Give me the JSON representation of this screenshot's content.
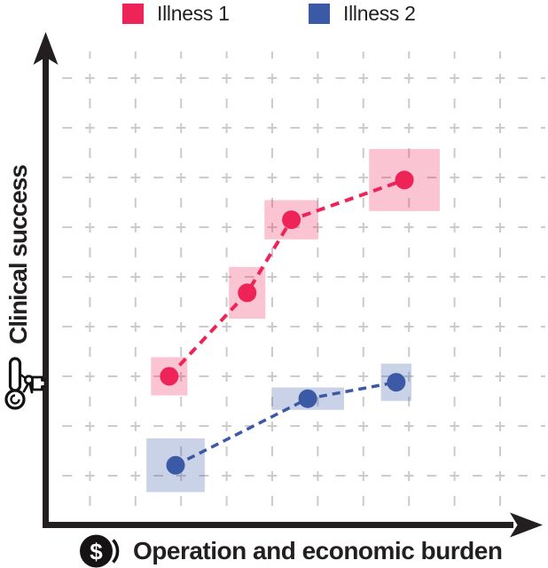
{
  "figure": {
    "background": "#ffffff",
    "text_color": "#231f20",
    "grid_color": "#cbcbcd",
    "axis_color": "#231f20"
  },
  "legend": {
    "items": [
      {
        "label": "Illness 1",
        "color": "#ee2458"
      },
      {
        "label": "Illness 2",
        "color": "#3c59a6"
      }
    ]
  },
  "axes": {
    "y_label": "Clinical success",
    "x_label": "Operation and economic burden",
    "y_axis_icon": "thermometer-hand-icon",
    "x_axis_icon": "dollar-coin-icon",
    "tick_labels": "none"
  },
  "chart_data": {
    "type": "scatter",
    "title": "",
    "xlabel": "Operation and economic burden",
    "ylabel": "Clinical success",
    "xlim": [
      0,
      11
    ],
    "ylim": [
      0,
      9.9
    ],
    "grid": "dashed",
    "legend_position": "top",
    "axis_ticks": "none",
    "series": [
      {
        "name": "Illness 1",
        "color": "#ee2458",
        "box_fill": "rgba(238,36,88,0.27)",
        "line_style": "dashed",
        "marker": "circle",
        "points": [
          {
            "x": 2.74,
            "y": 3.0,
            "box_w": 0.8,
            "box_h": 0.77
          },
          {
            "x": 4.45,
            "y": 4.68,
            "box_w": 0.8,
            "box_h": 1.04
          },
          {
            "x": 5.42,
            "y": 6.15,
            "box_w": 1.18,
            "box_h": 0.79
          },
          {
            "x": 7.9,
            "y": 6.95,
            "box_w": 1.55,
            "box_h": 1.25
          }
        ]
      },
      {
        "name": "Illness 2",
        "color": "#3c59a6",
        "box_fill": "rgba(60,89,166,0.27)",
        "line_style": "dashed",
        "marker": "circle",
        "points": [
          {
            "x": 2.88,
            "y": 1.21,
            "box_w": 1.28,
            "box_h": 1.08
          },
          {
            "x": 5.78,
            "y": 2.55,
            "box_w": 1.59,
            "box_h": 0.45
          },
          {
            "x": 7.72,
            "y": 2.88,
            "box_w": 0.67,
            "box_h": 0.75
          }
        ]
      }
    ]
  }
}
